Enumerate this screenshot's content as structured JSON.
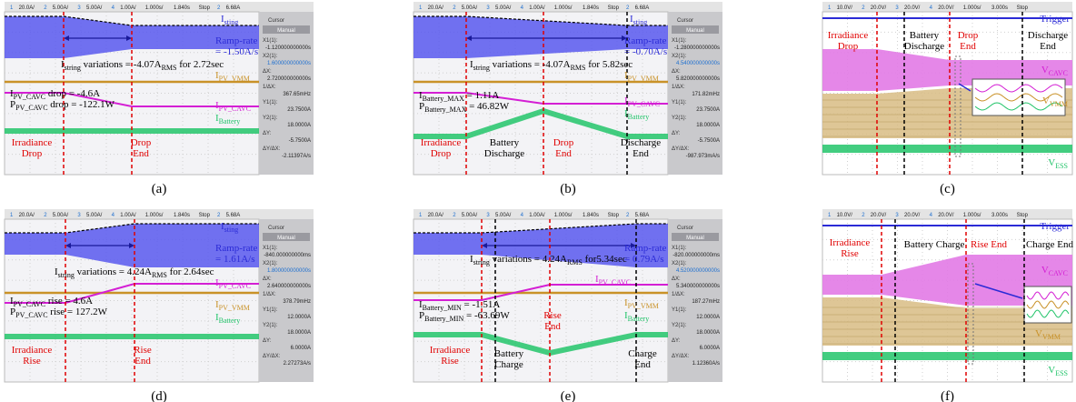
{
  "panels": [
    {
      "caption": "(a)",
      "topbar": [
        "1",
        "20.0A/",
        "2",
        "5.00A/",
        "3",
        "5.00A/",
        "4",
        "1.00A/",
        "1.000s/",
        "1.840s",
        "Stop",
        "2",
        "6.68A"
      ],
      "cursor": {
        "title": "Cursor",
        "mode": "Manual",
        "rows": [
          [
            "X1(1):",
            "-1.120000000000s"
          ],
          [
            "X2(1):",
            "1.600000000000s"
          ],
          [
            "ΔX:",
            "2.720000000000s"
          ],
          [
            "1/ΔX:",
            "367.65mHz"
          ],
          [
            "Y1(1):",
            "23.7500A"
          ],
          [
            "Y2(1):",
            "18.0000A"
          ],
          [
            "ΔY:",
            "-5.7500A"
          ],
          [
            "ΔY/ΔX:",
            "-2.11397A/s"
          ]
        ]
      },
      "labels": [
        [
          [
            "I",
            {
              "sub": "sting"
            }
          ]
        ],
        [
          [
            "I",
            {
              "sub": "string"
            },
            " variations = -4.07A",
            {
              "sub": "RMS"
            },
            " for 2.72sec"
          ]
        ],
        [
          [
            "Ramp-rate"
          ],
          [
            "= -1.50A/s"
          ]
        ],
        [
          [
            "I",
            {
              "sub": "PV_VMM"
            }
          ]
        ],
        [
          [
            "I",
            {
              "sub": "PV_CAVC"
            },
            " drop = -4.6A"
          ],
          [
            "P",
            {
              "sub": "PV_CAVC"
            },
            " drop = -122.1W"
          ]
        ],
        [
          [
            "I",
            {
              "sub": "PV_CAVC"
            }
          ]
        ],
        [
          [
            "I",
            {
              "sub": "Battery"
            }
          ]
        ],
        [
          [
            "Irradiance"
          ],
          [
            "Drop"
          ]
        ],
        [
          [
            "Drop"
          ],
          [
            "End"
          ]
        ]
      ]
    },
    {
      "caption": "(b)",
      "topbar": [
        "1",
        "20.0A/",
        "2",
        "5.00A/",
        "3",
        "5.00A/",
        "4",
        "1.00A/",
        "1.000s/",
        "1.840s",
        "Stop",
        "2",
        "6.68A"
      ],
      "cursor": {
        "title": "Cursor",
        "mode": "Manual",
        "rows": [
          [
            "X1(1):",
            "-1.280000000000s"
          ],
          [
            "X2(1):",
            "4.540000000000s"
          ],
          [
            "ΔX:",
            "5.820000000000s"
          ],
          [
            "1/ΔX:",
            "171.82mHz"
          ],
          [
            "Y1(1):",
            "23.7500A"
          ],
          [
            "Y2(1):",
            "18.0000A"
          ],
          [
            "ΔY:",
            "-5.7500A"
          ],
          [
            "ΔY/ΔX:",
            "-987.973mA/s"
          ]
        ]
      },
      "labels": [
        [
          [
            "I",
            {
              "sub": "sting"
            }
          ]
        ],
        [
          [
            "I",
            {
              "sub": "string"
            },
            " variations = -4.07A",
            {
              "sub": "RMS"
            },
            " for 5.82sec"
          ]
        ],
        [
          [
            "Ramp-rate"
          ],
          [
            "= -0.70A/s"
          ]
        ],
        [
          [
            "I",
            {
              "sub": "PV_VMM"
            }
          ]
        ],
        [
          [
            "I",
            {
              "sub": "Battery_MAX"
            },
            " = 1.11A"
          ],
          [
            "P",
            {
              "sub": "Battery_MAX"
            },
            " = 46.82W"
          ]
        ],
        [
          [
            "I",
            {
              "sub": "PV_CAVC"
            }
          ]
        ],
        [
          [
            "I",
            {
              "sub": "Battery"
            }
          ]
        ],
        [
          [
            "Irradiance"
          ],
          [
            "Drop"
          ]
        ],
        [
          [
            "Battery"
          ],
          [
            "Discharge"
          ]
        ],
        [
          [
            "Drop"
          ],
          [
            "End"
          ]
        ],
        [
          [
            "Discharge"
          ],
          [
            "End"
          ]
        ]
      ]
    },
    {
      "caption": "(c)",
      "topbar": [
        "1",
        "10.0V/",
        "2",
        "20.0V/",
        "3",
        "20.0V/",
        "4",
        "20.0V/",
        "1.000s/",
        "3.000s",
        "Stop"
      ],
      "labels": [
        [
          [
            "Trigger"
          ]
        ],
        [
          [
            "Irradiance"
          ],
          [
            "Drop"
          ]
        ],
        [
          [
            "Battery"
          ],
          [
            "Discharge"
          ]
        ],
        [
          [
            "Drop"
          ],
          [
            "End"
          ]
        ],
        [
          [
            "Discharge"
          ],
          [
            "End"
          ]
        ],
        [
          [
            "V",
            {
              "sub": "CAVC"
            }
          ]
        ],
        [
          [
            "V",
            {
              "sub": "VMM"
            }
          ]
        ],
        [
          [
            "V",
            {
              "sub": "ESS"
            }
          ]
        ]
      ]
    },
    {
      "caption": "(d)",
      "topbar": [
        "1",
        "20.0A/",
        "2",
        "5.00A/",
        "3",
        "5.00A/",
        "4",
        "1.00A/",
        "1.000s/",
        "1.840s",
        "Stop",
        "2",
        "5.68A"
      ],
      "cursor": {
        "title": "Cursor",
        "mode": "Manual",
        "rows": [
          [
            "X1(1):",
            "-840.000000000ms"
          ],
          [
            "X2(1):",
            "1.800000000000s"
          ],
          [
            "ΔX:",
            "2.640000000000s"
          ],
          [
            "1/ΔX:",
            "378.79mHz"
          ],
          [
            "Y1(1):",
            "12.0000A"
          ],
          [
            "Y2(1):",
            "18.0000A"
          ],
          [
            "ΔY:",
            "6.0000A"
          ],
          [
            "ΔY/ΔX:",
            "2.27273A/s"
          ]
        ]
      },
      "labels": [
        [
          [
            "I",
            {
              "sub": "sting"
            }
          ]
        ],
        [
          [
            "I",
            {
              "sub": "string"
            },
            " variations = 4.24A",
            {
              "sub": "RMS"
            },
            " for 2.64sec"
          ]
        ],
        [
          [
            "Ramp-rate"
          ],
          [
            "= 1.61A/s"
          ]
        ],
        [
          [
            "I",
            {
              "sub": "PV_CAVC"
            }
          ]
        ],
        [
          [
            "I",
            {
              "sub": "PV_CAVC"
            },
            " rise = 4.6A"
          ],
          [
            "P",
            {
              "sub": "PV_CAVC"
            },
            " rise = 127.2W"
          ]
        ],
        [
          [
            "I",
            {
              "sub": "PV_VMM"
            }
          ]
        ],
        [
          [
            "I",
            {
              "sub": "Battery"
            }
          ]
        ],
        [
          [
            "Irradiance"
          ],
          [
            "Rise"
          ]
        ],
        [
          [
            "Rise"
          ],
          [
            "End"
          ]
        ]
      ]
    },
    {
      "caption": "(e)",
      "topbar": [
        "1",
        "20.0A/",
        "2",
        "5.00A/",
        "3",
        "5.00A/",
        "4",
        "1.00A/",
        "1.000s/",
        "1.840s",
        "Stop",
        "2",
        "5.68A"
      ],
      "cursor": {
        "title": "Cursor",
        "mode": "Manual",
        "rows": [
          [
            "X1(1):",
            "-820.000000000ms"
          ],
          [
            "X2(1):",
            "4.520000000000s"
          ],
          [
            "ΔX:",
            "5.340000000000s"
          ],
          [
            "1/ΔX:",
            "187.27mHz"
          ],
          [
            "Y1(1):",
            "12.0000A"
          ],
          [
            "Y2(1):",
            "18.0000A"
          ],
          [
            "ΔY:",
            "6.0000A"
          ],
          [
            "ΔY/ΔX:",
            "1.12360A/s"
          ]
        ]
      },
      "labels": [
        [
          [
            "I",
            {
              "sub": "string"
            },
            " variations = 4.24A",
            {
              "sub": "RMS"
            },
            " for5.34sec"
          ]
        ],
        [
          [
            "Ramp-rate"
          ],
          [
            "= 0.79A/s"
          ]
        ],
        [
          [
            "I",
            {
              "sub": "PV_CAVC"
            }
          ]
        ],
        [
          [
            "I",
            {
              "sub": "Battery_MIN"
            },
            " = -1.51A"
          ],
          [
            "P",
            {
              "sub": "Battery_MIN"
            },
            " = -63.69W"
          ]
        ],
        [
          [
            "Rise"
          ],
          [
            "End"
          ]
        ],
        [
          [
            "I",
            {
              "sub": "PV_VMM"
            }
          ]
        ],
        [
          [
            "I",
            {
              "sub": "Battery"
            }
          ]
        ],
        [
          [
            "Irradiance"
          ],
          [
            "Rise"
          ]
        ],
        [
          [
            "Battery"
          ],
          [
            "Charge"
          ]
        ],
        [
          [
            "Charge"
          ],
          [
            "End"
          ]
        ]
      ]
    },
    {
      "caption": "(f)",
      "topbar": [
        "1",
        "10.0V/",
        "2",
        "20.0V/",
        "3",
        "20.0V/",
        "4",
        "20.0V/",
        "1.000s/",
        "3.000s",
        "Stop"
      ],
      "labels": [
        [
          [
            "Trigger"
          ]
        ],
        [
          [
            "Irradiance"
          ],
          [
            "Rise"
          ]
        ],
        [
          [
            "Battery Charge"
          ]
        ],
        [
          [
            "Rise End"
          ]
        ],
        [
          [
            "Charge End"
          ]
        ],
        [
          [
            "V",
            {
              "sub": "CAVC"
            }
          ]
        ],
        [
          [
            "V",
            {
              "sub": "VMM"
            }
          ]
        ],
        [
          [
            "V",
            {
              "sub": "ESS"
            }
          ]
        ]
      ]
    }
  ]
}
